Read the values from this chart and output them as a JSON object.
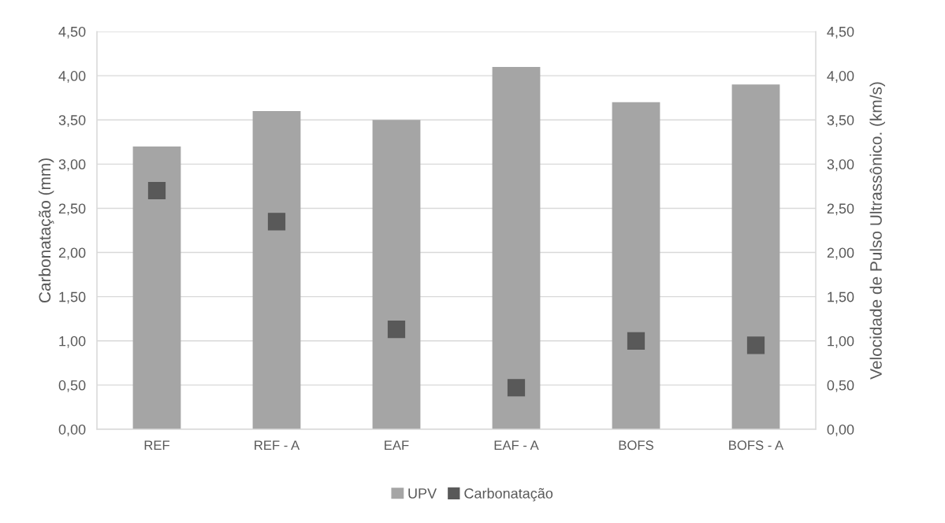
{
  "chart_data": {
    "type": "bar",
    "categories": [
      "REF",
      "REF - A",
      "EAF",
      "EAF - A",
      "BOFS",
      "BOFS - A"
    ],
    "ylabel": "Carbonatação (mm)",
    "y2label": "Velocidade de Pulso Ultrassônico. (km/s)",
    "series": [
      {
        "name": "UPV",
        "axis": "y2",
        "color": "#a5a5a5",
        "values": [
          3.2,
          3.6,
          3.5,
          4.1,
          3.7,
          3.9
        ]
      },
      {
        "name": "Carbonatação",
        "type": "scatter",
        "axis": "y",
        "color": "#595959",
        "marker": "square",
        "values": [
          2.7,
          2.35,
          1.13,
          0.47,
          1.0,
          0.95
        ]
      }
    ],
    "ylim": [
      0,
      4.5
    ],
    "yticks": [
      {
        "value": 0,
        "label": "0,00"
      },
      {
        "value": 0.5,
        "label": "0,50"
      },
      {
        "value": 1,
        "label": "1,00"
      },
      {
        "value": 1.5,
        "label": "1,50"
      },
      {
        "value": 2,
        "label": "2,00"
      },
      {
        "value": 2.5,
        "label": "2,50"
      },
      {
        "value": 3,
        "label": "3,00"
      },
      {
        "value": 3.5,
        "label": "3,50"
      },
      {
        "value": 4,
        "label": "4,00"
      },
      {
        "value": 4.5,
        "label": "4,50"
      }
    ],
    "y2lim": [
      0,
      4.5
    ],
    "y2ticks": [
      {
        "value": 0,
        "label": "0,00"
      },
      {
        "value": 0.5,
        "label": "0,50"
      },
      {
        "value": 1,
        "label": "1,00"
      },
      {
        "value": 1.5,
        "label": "1,50"
      },
      {
        "value": 2,
        "label": "2,00"
      },
      {
        "value": 2.5,
        "label": "2,50"
      },
      {
        "value": 3,
        "label": "3,00"
      },
      {
        "value": 3.5,
        "label": "3,50"
      },
      {
        "value": 4,
        "label": "4,00"
      },
      {
        "value": 4.5,
        "label": "4,50"
      }
    ],
    "grid": "y",
    "legend": "bottom"
  }
}
